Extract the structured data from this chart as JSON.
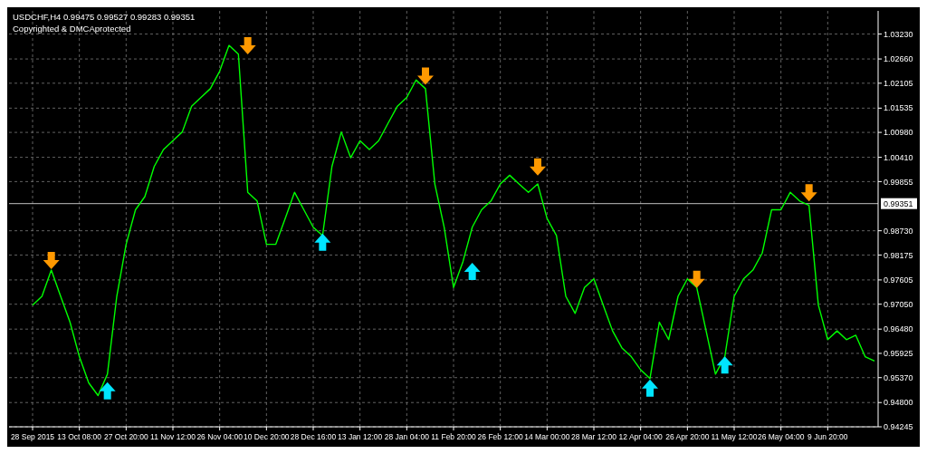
{
  "chart_data": {
    "type": "line",
    "title": "USDCHF,H4  0.99475 0.99527 0.99283 0.99351",
    "annotations": [
      "Copyrighted & DMCAprotected"
    ],
    "categories": [
      "28 Sep 2015",
      null,
      null,
      null,
      null,
      "13 Oct 08:00",
      null,
      null,
      null,
      null,
      "27 Oct 20:00",
      null,
      null,
      null,
      null,
      "11 Nov 12:00",
      null,
      null,
      null,
      null,
      "26 Nov 04:00",
      null,
      null,
      null,
      null,
      "10 Dec 20:00",
      null,
      null,
      null,
      null,
      "28 Dec 16:00",
      null,
      null,
      null,
      null,
      "13 Jan 12:00",
      null,
      null,
      null,
      null,
      "28 Jan 04:00",
      null,
      null,
      null,
      null,
      "11 Feb 20:00",
      null,
      null,
      null,
      null,
      "26 Feb 12:00",
      null,
      null,
      null,
      null,
      "14 Mar 00:00",
      null,
      null,
      null,
      null,
      "28 Mar 12:00",
      null,
      null,
      null,
      null,
      "12 Apr 04:00",
      null,
      null,
      null,
      null,
      "26 Apr 20:00",
      null,
      null,
      null,
      null,
      "11 May 12:00",
      null,
      null,
      null,
      null,
      "26 May 04:00",
      null,
      null,
      null,
      null,
      "9 Jun 20:00",
      null,
      null,
      null,
      null,
      null
    ],
    "series": [
      {
        "color": "#00ff00",
        "values": [
          0.9703,
          0.9723,
          0.9783,
          0.9723,
          0.9664,
          0.9585,
          0.9525,
          0.9496,
          0.9545,
          0.9723,
          0.9842,
          0.9921,
          0.9951,
          1.002,
          1.0059,
          1.0079,
          1.0099,
          1.0158,
          1.0178,
          1.0198,
          1.0238,
          1.0297,
          1.0277,
          0.9961,
          0.9941,
          0.9842,
          0.9842,
          0.9901,
          0.9961,
          0.9921,
          0.9881,
          0.9862,
          1.002,
          1.0099,
          1.004,
          1.0079,
          1.0059,
          1.0079,
          1.0119,
          1.0158,
          1.0178,
          1.0218,
          1.0198,
          0.998,
          0.9881,
          0.9743,
          0.9802,
          0.9881,
          0.9921,
          0.9941,
          0.998,
          1.0,
          0.998,
          0.9961,
          0.998,
          0.9901,
          0.9862,
          0.9723,
          0.9684,
          0.9743,
          0.9763,
          0.9703,
          0.9644,
          0.9605,
          0.9585,
          0.9555,
          0.9535,
          0.9664,
          0.9624,
          0.9723,
          0.9763,
          0.9743,
          0.9644,
          0.9545,
          0.9585,
          0.9723,
          0.9763,
          0.9783,
          0.9822,
          0.9921,
          0.9921,
          0.9961,
          0.9941,
          0.9931,
          0.9703,
          0.9624,
          0.9644,
          0.9624,
          0.9634,
          0.9585,
          0.9575
        ]
      },
      {
        "type": "scatter",
        "color": "#ff9900",
        "values": [
          null,
          null,
          0.9806,
          null,
          null,
          null,
          null,
          null,
          null,
          null,
          null,
          null,
          null,
          null,
          null,
          null,
          null,
          null,
          null,
          null,
          null,
          null,
          null,
          1.0297,
          null,
          null,
          null,
          null,
          null,
          null,
          null,
          null,
          null,
          null,
          null,
          null,
          null,
          null,
          null,
          null,
          null,
          null,
          1.0228,
          null,
          null,
          null,
          null,
          null,
          null,
          null,
          null,
          null,
          null,
          null,
          1.002,
          null,
          null,
          null,
          null,
          null,
          null,
          null,
          null,
          null,
          null,
          null,
          null,
          null,
          null,
          null,
          null,
          0.9763,
          null,
          null,
          null,
          null,
          null,
          null,
          null,
          null,
          null,
          null,
          null,
          0.9961,
          null,
          null,
          null,
          null,
          null,
          null,
          null
        ]
      },
      {
        "type": "scatter",
        "color": "#00e5ff",
        "values": [
          null,
          null,
          null,
          null,
          null,
          null,
          null,
          null,
          0.9506,
          null,
          null,
          null,
          null,
          null,
          null,
          null,
          null,
          null,
          null,
          null,
          null,
          null,
          null,
          null,
          null,
          null,
          null,
          null,
          null,
          null,
          null,
          0.9846,
          null,
          null,
          null,
          null,
          null,
          null,
          null,
          null,
          null,
          null,
          null,
          null,
          null,
          null,
          null,
          0.9779,
          null,
          null,
          null,
          null,
          null,
          null,
          null,
          null,
          null,
          null,
          null,
          null,
          null,
          null,
          null,
          null,
          null,
          null,
          0.9512,
          null,
          null,
          null,
          null,
          null,
          null,
          null,
          0.9565,
          null,
          null,
          null,
          null,
          null,
          null,
          null,
          null,
          null,
          null,
          null,
          null,
          null,
          null,
          null,
          null
        ]
      }
    ],
    "ylim": [
      0.94245,
      1.0376
    ],
    "yticks": [
      {
        "value": 1.0323,
        "label": "1.03230"
      },
      {
        "value": 1.0266,
        "label": "1.02660"
      },
      {
        "value": 1.02105,
        "label": "1.02105"
      },
      {
        "value": 1.01535,
        "label": "1.01535"
      },
      {
        "value": 1.0098,
        "label": "1.00980"
      },
      {
        "value": 1.0041,
        "label": "1.00410"
      },
      0.99855,
      {
        "value": 0.9873,
        "label": "0.98730"
      },
      0.98175,
      0.97605,
      {
        "value": 0.9705,
        "label": "0.97050"
      },
      {
        "value": 0.9648,
        "label": "0.96480"
      },
      0.95925,
      {
        "value": 0.9537,
        "label": "0.95370"
      },
      {
        "value": 0.948,
        "label": "0.94800"
      },
      0.94245
    ],
    "ref_lines": [
      {
        "axis": "y",
        "value": 0.99351,
        "label": "0.99351",
        "color": "#c0c0c0"
      }
    ],
    "grid": true
  }
}
